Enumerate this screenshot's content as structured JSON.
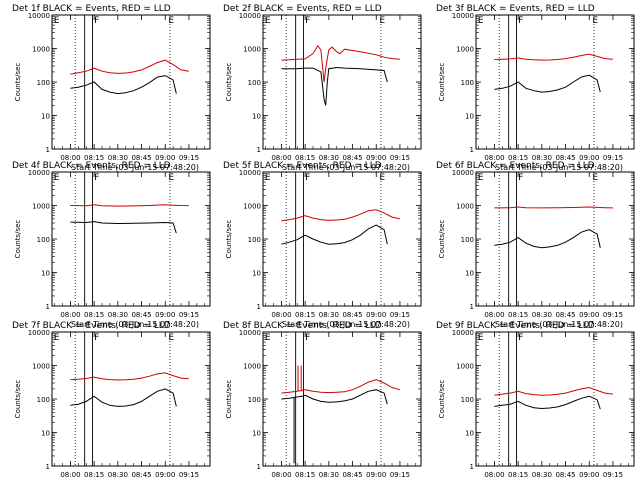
{
  "figure": {
    "xlabel": "Start Time (03-Jun-15 07:48:20)",
    "ylabel": "Counts/sec",
    "title_suffix": "BLACK = Events, RED = LLD",
    "colors": {
      "events": "#000000",
      "lld": "#d00000",
      "background": "#ffffff"
    },
    "x_ticks": [
      "08:00",
      "08:15",
      "08:30",
      "08:45",
      "09:00",
      "09:15"
    ],
    "x_tick_minutes": [
      0,
      15,
      30,
      45,
      60,
      75
    ],
    "y_ticks": [
      "1",
      "10",
      "100",
      "1000",
      "10000"
    ],
    "y_tick_values": [
      1,
      10,
      100,
      1000,
      10000
    ],
    "xlim_minutes": [
      -11.67,
      88.33
    ],
    "ylim": [
      1,
      10000
    ],
    "flags": [
      "E",
      "F",
      "E"
    ]
  },
  "chart_data": [
    {
      "type": "line",
      "detector": "Det 1f",
      "title": "Det 1f BLACK = Events, RED = LLD",
      "events": {
        "x": [
          0,
          5,
          10,
          15,
          20,
          25,
          30,
          35,
          40,
          45,
          50,
          55,
          60,
          65,
          67
        ],
        "y": [
          65,
          70,
          80,
          100,
          60,
          50,
          45,
          48,
          55,
          70,
          95,
          140,
          155,
          115,
          45
        ]
      },
      "lld": {
        "x": [
          0,
          5,
          10,
          15,
          20,
          25,
          30,
          35,
          40,
          45,
          50,
          55,
          60,
          65,
          70,
          75
        ],
        "y": [
          170,
          190,
          210,
          260,
          210,
          190,
          180,
          185,
          200,
          230,
          290,
          380,
          450,
          330,
          230,
          210
        ]
      },
      "spikes": []
    },
    {
      "type": "line",
      "detector": "Det 2f",
      "title": "Det 2f BLACK = Events, RED = LLD",
      "events": {
        "x": [
          0,
          10,
          15,
          20,
          25,
          26,
          27,
          28,
          29,
          30,
          35,
          40,
          50,
          60,
          65,
          67
        ],
        "y": [
          250,
          250,
          260,
          260,
          200,
          80,
          30,
          20,
          100,
          250,
          270,
          260,
          250,
          230,
          220,
          100
        ]
      },
      "lld": {
        "x": [
          0,
          5,
          10,
          15,
          20,
          23,
          25,
          26,
          27,
          28,
          29,
          30,
          32,
          35,
          37,
          40,
          50,
          60,
          65,
          70,
          75
        ],
        "y": [
          450,
          460,
          480,
          490,
          700,
          1200,
          900,
          300,
          100,
          250,
          500,
          900,
          1100,
          800,
          700,
          950,
          800,
          650,
          550,
          500,
          480
        ]
      },
      "spikes": []
    },
    {
      "type": "line",
      "detector": "Det 3f",
      "title": "Det 3f BLACK = Events, RED = LLD",
      "events": {
        "x": [
          0,
          5,
          10,
          15,
          20,
          25,
          30,
          35,
          40,
          45,
          50,
          55,
          60,
          65,
          67
        ],
        "y": [
          60,
          65,
          75,
          100,
          65,
          55,
          50,
          52,
          58,
          70,
          100,
          140,
          160,
          115,
          50
        ]
      },
      "lld": {
        "x": [
          0,
          5,
          10,
          15,
          20,
          25,
          30,
          35,
          40,
          45,
          50,
          55,
          60,
          65,
          70,
          75
        ],
        "y": [
          470,
          480,
          490,
          520,
          480,
          460,
          450,
          455,
          470,
          500,
          550,
          620,
          680,
          580,
          500,
          480
        ]
      },
      "spikes": []
    },
    {
      "type": "line",
      "detector": "Det 4f",
      "title": "Det 4f BLACK = Events, RED = LLD",
      "events": {
        "x": [
          0,
          10,
          15,
          20,
          30,
          40,
          50,
          60,
          65,
          67
        ],
        "y": [
          320,
          310,
          330,
          300,
          290,
          295,
          300,
          310,
          300,
          150
        ]
      },
      "lld": {
        "x": [
          0,
          10,
          15,
          20,
          30,
          40,
          50,
          60,
          65,
          70,
          75
        ],
        "y": [
          1000,
          980,
          1050,
          980,
          960,
          970,
          1000,
          1050,
          1020,
          1000,
          990
        ]
      },
      "spikes": []
    },
    {
      "type": "line",
      "detector": "Det 5f",
      "title": "Det 5f BLACK = Events, RED = LLD",
      "events": {
        "x": [
          0,
          5,
          10,
          15,
          20,
          25,
          30,
          35,
          40,
          45,
          50,
          55,
          60,
          65,
          67
        ],
        "y": [
          70,
          80,
          95,
          130,
          100,
          80,
          70,
          72,
          78,
          95,
          130,
          200,
          260,
          190,
          70
        ]
      },
      "lld": {
        "x": [
          0,
          5,
          10,
          15,
          20,
          25,
          30,
          35,
          40,
          45,
          50,
          55,
          60,
          65,
          70,
          75
        ],
        "y": [
          350,
          380,
          420,
          500,
          420,
          380,
          360,
          370,
          390,
          450,
          550,
          700,
          750,
          600,
          450,
          400
        ]
      },
      "spikes": []
    },
    {
      "type": "line",
      "detector": "Det 6f",
      "title": "Det 6f BLACK = Events, RED = LLD",
      "events": {
        "x": [
          0,
          5,
          10,
          15,
          20,
          25,
          30,
          35,
          40,
          45,
          50,
          55,
          60,
          65,
          67
        ],
        "y": [
          65,
          70,
          80,
          110,
          75,
          60,
          55,
          58,
          65,
          80,
          110,
          160,
          190,
          140,
          55
        ]
      },
      "lld": {
        "x": [
          0,
          10,
          15,
          20,
          30,
          40,
          50,
          60,
          65,
          70,
          75
        ],
        "y": [
          850,
          860,
          900,
          860,
          850,
          855,
          870,
          900,
          880,
          860,
          850
        ]
      },
      "spikes": []
    },
    {
      "type": "line",
      "detector": "Det 7f",
      "title": "Det 7f BLACK = Events, RED = LLD",
      "events": {
        "x": [
          0,
          5,
          10,
          15,
          20,
          25,
          30,
          35,
          40,
          45,
          50,
          55,
          60,
          65,
          67
        ],
        "y": [
          65,
          70,
          85,
          120,
          80,
          65,
          60,
          62,
          68,
          85,
          120,
          170,
          200,
          150,
          60
        ]
      },
      "lld": {
        "x": [
          0,
          5,
          10,
          15,
          20,
          25,
          30,
          35,
          40,
          45,
          50,
          55,
          60,
          65,
          70,
          75
        ],
        "y": [
          380,
          390,
          410,
          450,
          400,
          380,
          370,
          375,
          390,
          420,
          480,
          560,
          600,
          500,
          420,
          400
        ]
      },
      "spikes": []
    },
    {
      "type": "line",
      "detector": "Det 8f",
      "title": "Det 8f BLACK = Events, RED = LLD",
      "events": {
        "x": [
          0,
          5,
          10,
          13,
          15,
          20,
          25,
          30,
          35,
          40,
          45,
          50,
          55,
          60,
          65,
          67
        ],
        "y": [
          100,
          105,
          115,
          120,
          130,
          100,
          85,
          80,
          82,
          88,
          100,
          130,
          170,
          190,
          150,
          70
        ]
      },
      "lld": {
        "x": [
          0,
          5,
          10,
          13,
          15,
          20,
          25,
          30,
          35,
          40,
          45,
          50,
          55,
          60,
          65,
          70,
          75
        ],
        "y": [
          150,
          160,
          170,
          180,
          190,
          170,
          160,
          155,
          158,
          165,
          190,
          240,
          320,
          380,
          300,
          220,
          190
        ]
      },
      "spikes": [
        {
          "series": "events",
          "x": 8.0,
          "y": 1.2
        },
        {
          "series": "lld",
          "x": 10.5,
          "y": 1000
        },
        {
          "series": "lld",
          "x": 12.5,
          "y": 1000
        },
        {
          "series": "events",
          "x": 14.0,
          "y": 1.2
        }
      ]
    },
    {
      "type": "line",
      "detector": "Det 9f",
      "title": "Det 9f BLACK = Events, RED = LLD",
      "events": {
        "x": [
          0,
          5,
          10,
          15,
          20,
          25,
          30,
          35,
          40,
          45,
          50,
          55,
          60,
          65,
          67
        ],
        "y": [
          60,
          65,
          70,
          85,
          65,
          55,
          52,
          54,
          58,
          68,
          85,
          105,
          120,
          95,
          50
        ]
      },
      "lld": {
        "x": [
          0,
          5,
          10,
          15,
          20,
          25,
          30,
          35,
          40,
          45,
          50,
          55,
          60,
          65,
          70,
          75
        ],
        "y": [
          130,
          140,
          150,
          170,
          145,
          135,
          130,
          132,
          138,
          150,
          175,
          200,
          220,
          180,
          150,
          140
        ]
      },
      "spikes": []
    }
  ]
}
